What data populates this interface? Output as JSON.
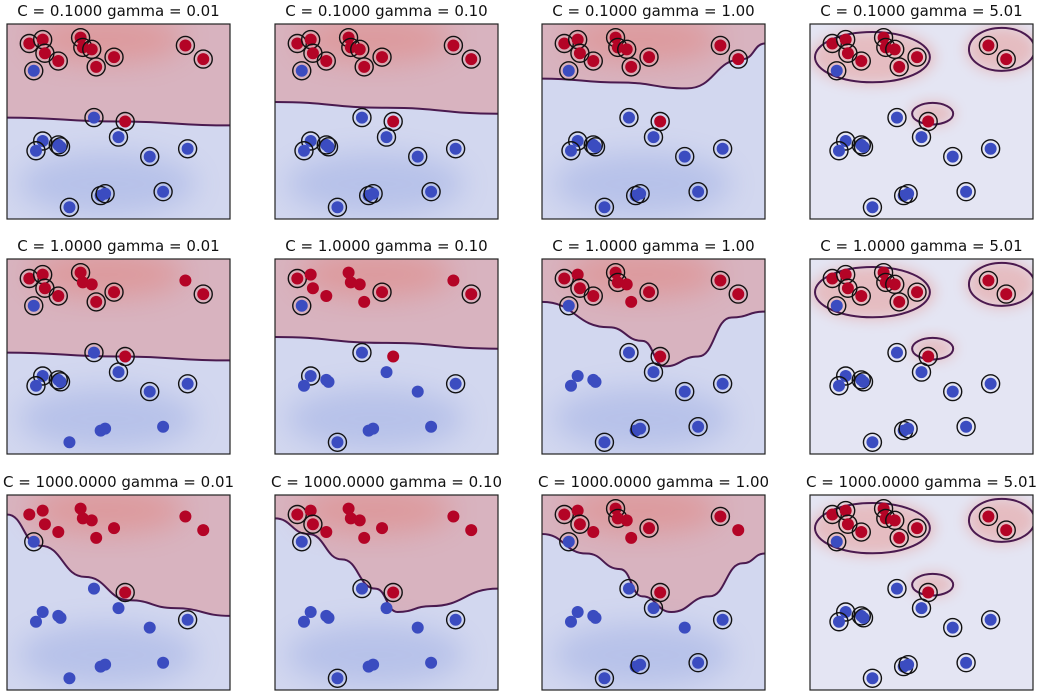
{
  "chart_data": {
    "type": "scatter",
    "description_kind": "svm-rbf-decision-function-grid",
    "rows": 3,
    "cols": 4,
    "x_range": [
      0,
      1
    ],
    "y_range": [
      0,
      1
    ],
    "axes_ticks": "none",
    "colors": {
      "positive_class": "#b40426",
      "negative_class": "#3b4cc0",
      "boundary": "#4a1a4f",
      "support_ring": "#111111",
      "frame": "#222222",
      "positive_field": "#e8604f",
      "negative_field": "#5a78d6"
    },
    "points": {
      "positive": [
        [
          0.1,
          0.9
        ],
        [
          0.16,
          0.92
        ],
        [
          0.17,
          0.85
        ],
        [
          0.23,
          0.81
        ],
        [
          0.33,
          0.93
        ],
        [
          0.34,
          0.88
        ],
        [
          0.38,
          0.87
        ],
        [
          0.4,
          0.78
        ],
        [
          0.48,
          0.83
        ],
        [
          0.8,
          0.89
        ],
        [
          0.88,
          0.82
        ],
        [
          0.53,
          0.5
        ]
      ],
      "negative": [
        [
          0.12,
          0.76
        ],
        [
          0.16,
          0.4
        ],
        [
          0.13,
          0.35
        ],
        [
          0.23,
          0.38
        ],
        [
          0.24,
          0.37
        ],
        [
          0.39,
          0.52
        ],
        [
          0.5,
          0.42
        ],
        [
          0.64,
          0.32
        ],
        [
          0.81,
          0.36
        ],
        [
          0.42,
          0.12
        ],
        [
          0.44,
          0.13
        ],
        [
          0.7,
          0.14
        ],
        [
          0.28,
          0.06
        ]
      ]
    },
    "panels": [
      {
        "title": "C = 0.1000 gamma = 0.01",
        "C": 0.1,
        "gamma": 0.01,
        "boundary_type": "line",
        "support": {
          "positive": [
            0,
            1,
            2,
            3,
            4,
            5,
            6,
            7,
            8,
            9,
            10,
            11
          ],
          "negative": [
            0,
            1,
            2,
            3,
            4,
            5,
            6,
            7,
            8,
            9,
            10,
            11,
            12
          ]
        }
      },
      {
        "title": "C = 0.1000 gamma = 0.10",
        "C": 0.1,
        "gamma": 0.1,
        "boundary_type": "line",
        "support": {
          "positive": [
            0,
            1,
            2,
            3,
            4,
            5,
            6,
            7,
            8,
            9,
            10,
            11
          ],
          "negative": [
            0,
            1,
            2,
            3,
            4,
            5,
            6,
            7,
            8,
            9,
            10,
            11,
            12
          ]
        }
      },
      {
        "title": "C = 0.1000 gamma = 1.00",
        "C": 0.1,
        "gamma": 1.0,
        "boundary_type": "blob",
        "support": {
          "positive": [
            0,
            1,
            2,
            3,
            4,
            5,
            6,
            7,
            8,
            9,
            10,
            11
          ],
          "negative": [
            0,
            1,
            2,
            3,
            4,
            5,
            6,
            7,
            8,
            9,
            10,
            11,
            12
          ]
        }
      },
      {
        "title": "C = 0.1000 gamma = 5.01",
        "C": 0.1,
        "gamma": 5.01,
        "boundary_type": "islands",
        "support": {
          "positive": [
            0,
            1,
            2,
            3,
            4,
            5,
            6,
            7,
            8,
            9,
            10,
            11
          ],
          "negative": [
            0,
            1,
            2,
            3,
            4,
            5,
            6,
            7,
            8,
            9,
            10,
            11,
            12
          ]
        }
      },
      {
        "title": "C = 1.0000 gamma = 0.01",
        "C": 1.0,
        "gamma": 0.01,
        "boundary_type": "line",
        "support": {
          "positive": [
            0,
            1,
            2,
            3,
            4,
            7,
            8,
            10,
            11
          ],
          "negative": [
            0,
            1,
            2,
            3,
            4,
            5,
            6,
            7,
            8
          ]
        }
      },
      {
        "title": "C = 1.0000 gamma = 0.10",
        "C": 1.0,
        "gamma": 0.1,
        "boundary_type": "line",
        "support": {
          "positive": [
            0,
            8,
            10
          ],
          "negative": [
            0,
            1,
            5,
            8,
            12
          ]
        }
      },
      {
        "title": "C = 1.0000 gamma = 1.00",
        "C": 1.0,
        "gamma": 1.0,
        "boundary_type": "blob",
        "support": {
          "positive": [
            0,
            2,
            3,
            4,
            5,
            8,
            9,
            10,
            11
          ],
          "negative": [
            0,
            5,
            6,
            7,
            8,
            10,
            11,
            12
          ]
        }
      },
      {
        "title": "C = 1.0000 gamma = 5.01",
        "C": 1.0,
        "gamma": 5.01,
        "boundary_type": "islands",
        "support": {
          "positive": [
            0,
            1,
            2,
            3,
            4,
            5,
            6,
            7,
            8,
            9,
            10,
            11
          ],
          "negative": [
            0,
            1,
            2,
            3,
            4,
            5,
            6,
            7,
            8,
            9,
            10,
            11,
            12
          ]
        }
      },
      {
        "title": "C = 1000.0000 gamma = 0.01",
        "C": 1000.0,
        "gamma": 0.01,
        "boundary_type": "curve",
        "support": {
          "positive": [
            11
          ],
          "negative": [
            0,
            8
          ]
        }
      },
      {
        "title": "C = 1000.0000 gamma = 0.10",
        "C": 1000.0,
        "gamma": 0.1,
        "boundary_type": "curve",
        "support": {
          "positive": [
            0,
            2,
            11
          ],
          "negative": [
            0,
            5,
            8,
            12
          ]
        }
      },
      {
        "title": "C = 1000.0000 gamma = 1.00",
        "C": 1000.0,
        "gamma": 1.0,
        "boundary_type": "blob",
        "support": {
          "positive": [
            0,
            2,
            4,
            5,
            8,
            9,
            11
          ],
          "negative": [
            0,
            5,
            6,
            8,
            10,
            11,
            12
          ]
        }
      },
      {
        "title": "C = 1000.0000 gamma = 5.01",
        "C": 1000.0,
        "gamma": 5.01,
        "boundary_type": "islands",
        "support": {
          "positive": [
            0,
            1,
            2,
            3,
            4,
            5,
            6,
            7,
            8,
            9,
            10,
            11
          ],
          "negative": [
            0,
            1,
            2,
            3,
            4,
            5,
            6,
            7,
            8,
            9,
            10,
            11,
            12
          ]
        }
      }
    ]
  }
}
